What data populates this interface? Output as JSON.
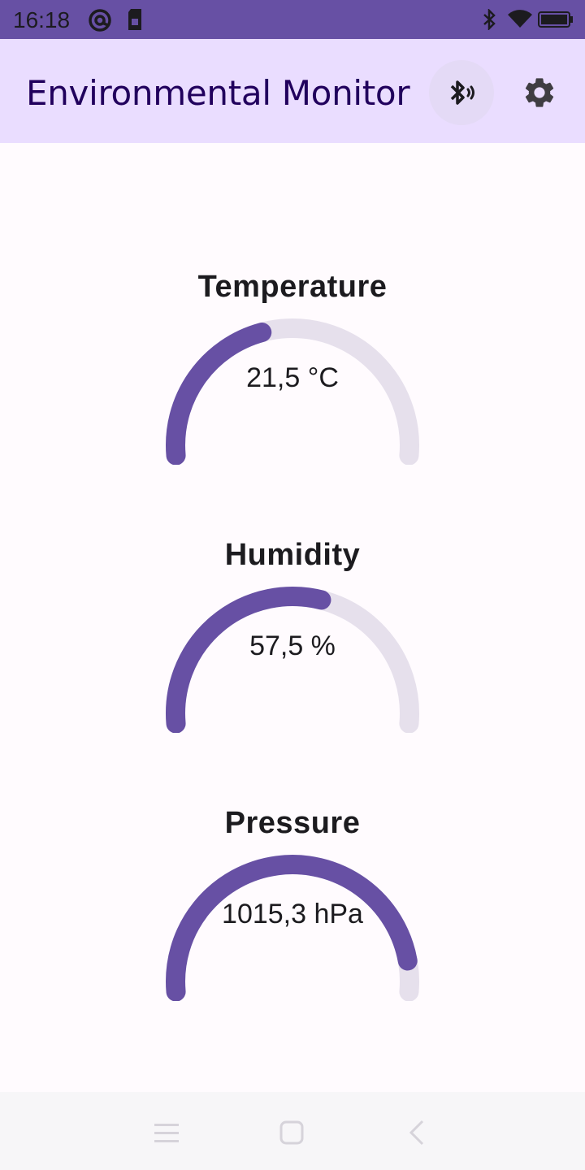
{
  "status_bar": {
    "time": "16:18",
    "icons": [
      "at-sign-icon",
      "sim-card-icon",
      "bluetooth-icon",
      "wifi-icon",
      "battery-icon"
    ]
  },
  "app_bar": {
    "title": "Environmental Monitor",
    "actions": [
      "bluetooth-searching-icon",
      "gear-icon"
    ]
  },
  "colors": {
    "primary": "#6750a4",
    "app_bar_bg": "#eaddff",
    "track": "#e6e0ec",
    "background": "#fffbfe",
    "title_text": "#21005d"
  },
  "gauges": [
    {
      "title": "Temperature",
      "value_text": "21,5 °C",
      "fill_fraction": 0.42
    },
    {
      "title": "Humidity",
      "value_text": "57,5 %",
      "fill_fraction": 0.575
    },
    {
      "title": "Pressure",
      "value_text": "1015,3 hPa",
      "fill_fraction": 0.92
    }
  ],
  "nav_bar": {
    "items": [
      "menu-icon",
      "home-icon",
      "back-icon"
    ]
  }
}
